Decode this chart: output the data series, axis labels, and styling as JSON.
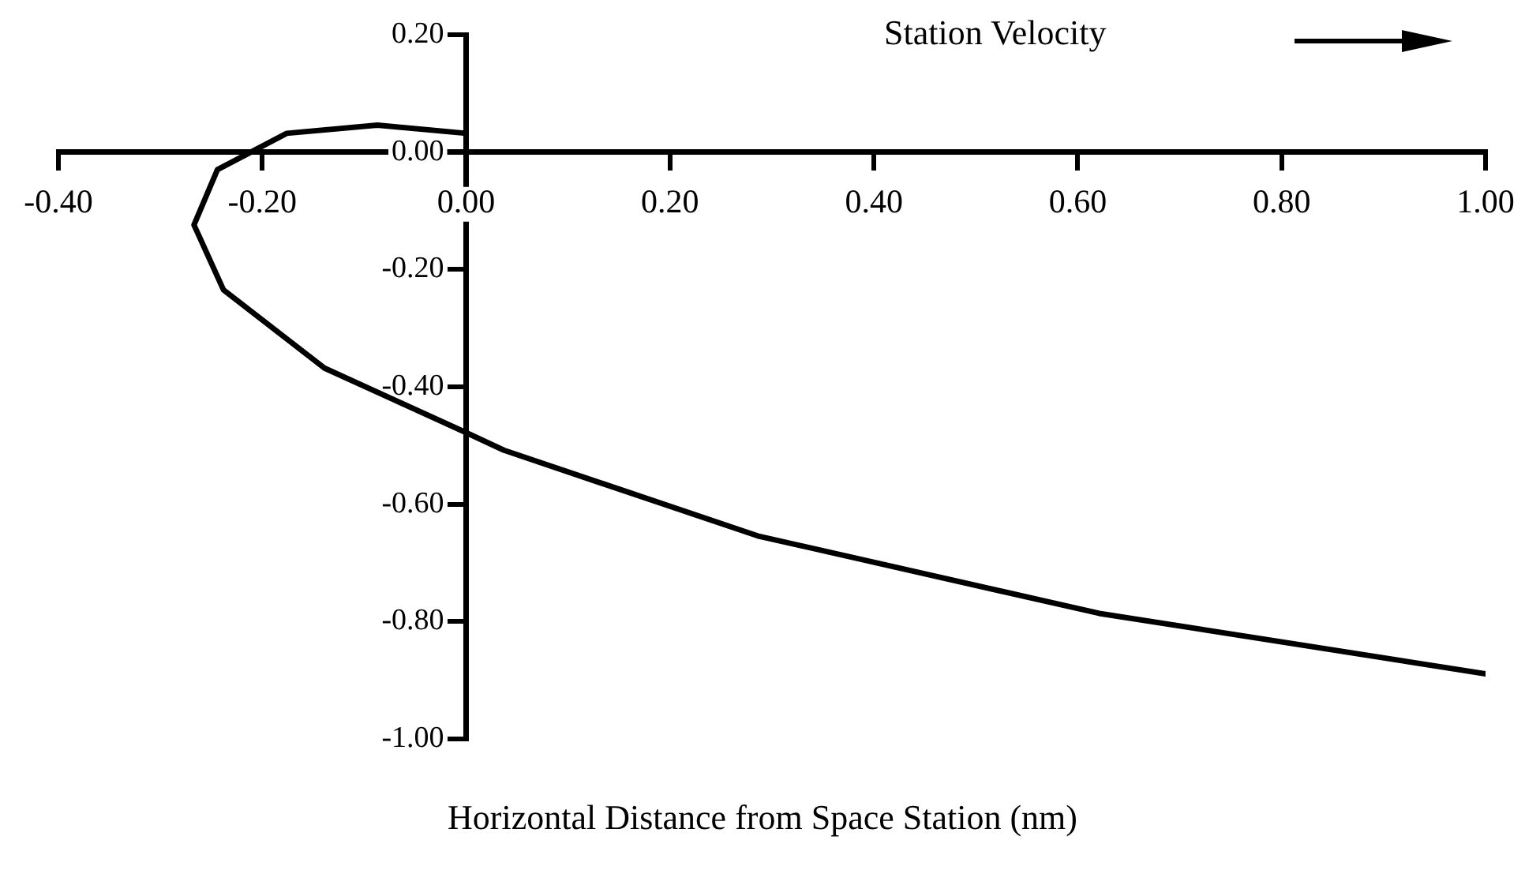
{
  "chart_data": {
    "type": "line",
    "xlabel": "Horizontal Distance from Space Station (nm)",
    "annotations": [
      "Station Velocity"
    ],
    "xlim": [
      -0.4,
      1.0
    ],
    "ylim": [
      -1.0,
      0.2
    ],
    "xticks": [
      {
        "value": -0.4,
        "label": "-0.40"
      },
      {
        "value": -0.2,
        "label": "-0.20"
      },
      {
        "value": 0,
        "label": "0.00"
      },
      {
        "value": 0.2,
        "label": "0.20"
      },
      {
        "value": 0.4,
        "label": "0.40"
      },
      {
        "value": 0.6,
        "label": "0.60"
      },
      {
        "value": 0.8,
        "label": "0.80"
      },
      {
        "value": 1.0,
        "label": "1.00"
      }
    ],
    "yticks": [
      {
        "value": 0.2,
        "label": "0.20"
      },
      {
        "value": 0,
        "label": "0.00"
      },
      {
        "value": -0.2,
        "label": "-0.20"
      },
      {
        "value": -0.4,
        "label": "-0.40"
      },
      {
        "value": -0.6,
        "label": "-0.60"
      },
      {
        "value": -0.8,
        "label": "-0.80"
      },
      {
        "value": -1.0,
        "label": "-1.00"
      }
    ],
    "grid": false,
    "legend": false,
    "marker": "none",
    "line_style": "solid",
    "series": [
      {
        "color": "#000000",
        "x": [
          0,
          -0.087,
          -0.176,
          -0.244,
          -0.267,
          -0.238,
          -0.139,
          0,
          0.037,
          0.286,
          0.621,
          1.0
        ],
        "values": [
          0.032,
          0.046,
          0.032,
          -0.03,
          -0.124,
          -0.235,
          -0.368,
          -0.478,
          -0.508,
          -0.654,
          -0.786,
          -0.889
        ]
      }
    ]
  }
}
